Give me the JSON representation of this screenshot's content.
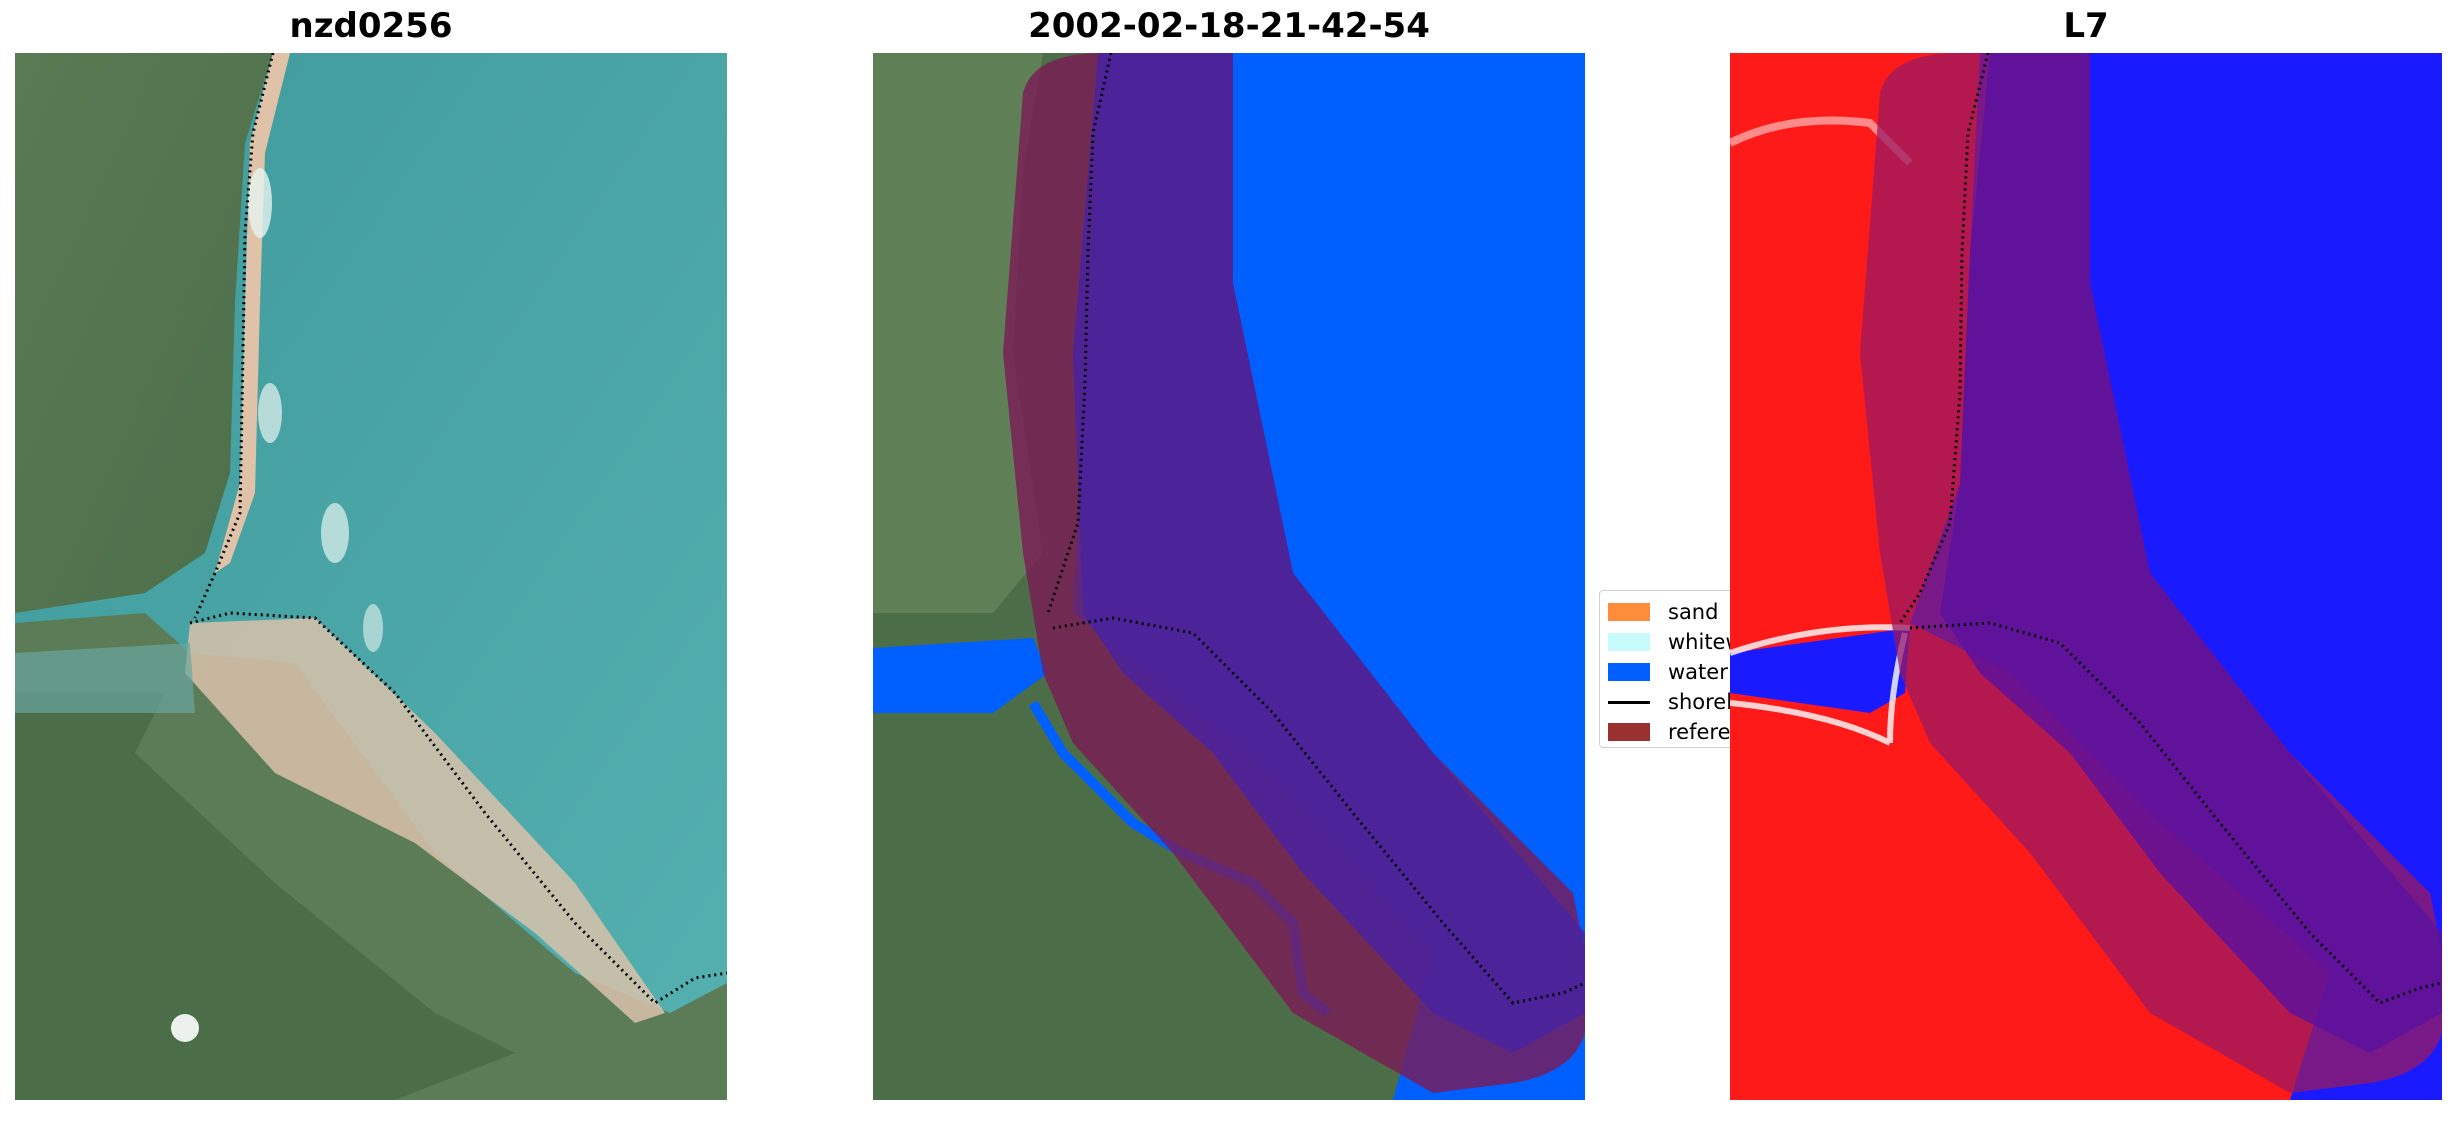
{
  "panels": [
    {
      "title": "nzd0256"
    },
    {
      "title": "2002-02-18-21-42-54"
    },
    {
      "title": "L7"
    }
  ],
  "legend": {
    "items": [
      {
        "label": "sand",
        "color": "#ff8c3a",
        "kind": "patch"
      },
      {
        "label": "whitewater",
        "color": "#c8fcfc",
        "kind": "patch"
      },
      {
        "label": "water",
        "color": "#0060ff",
        "kind": "patch"
      },
      {
        "label": "shoreline",
        "color": "#000000",
        "kind": "line"
      },
      {
        "label": "reference",
        "color": "#9a3030",
        "kind": "patch"
      }
    ]
  },
  "colors": {
    "land": "#5f7f55",
    "sea": "#4aa5a8",
    "beach": "#e2c4a8",
    "water_class": "#0060ff",
    "buffer": "#8a1a6a",
    "index_land": "#ff1a1a",
    "index_water": "#1a1aff"
  }
}
